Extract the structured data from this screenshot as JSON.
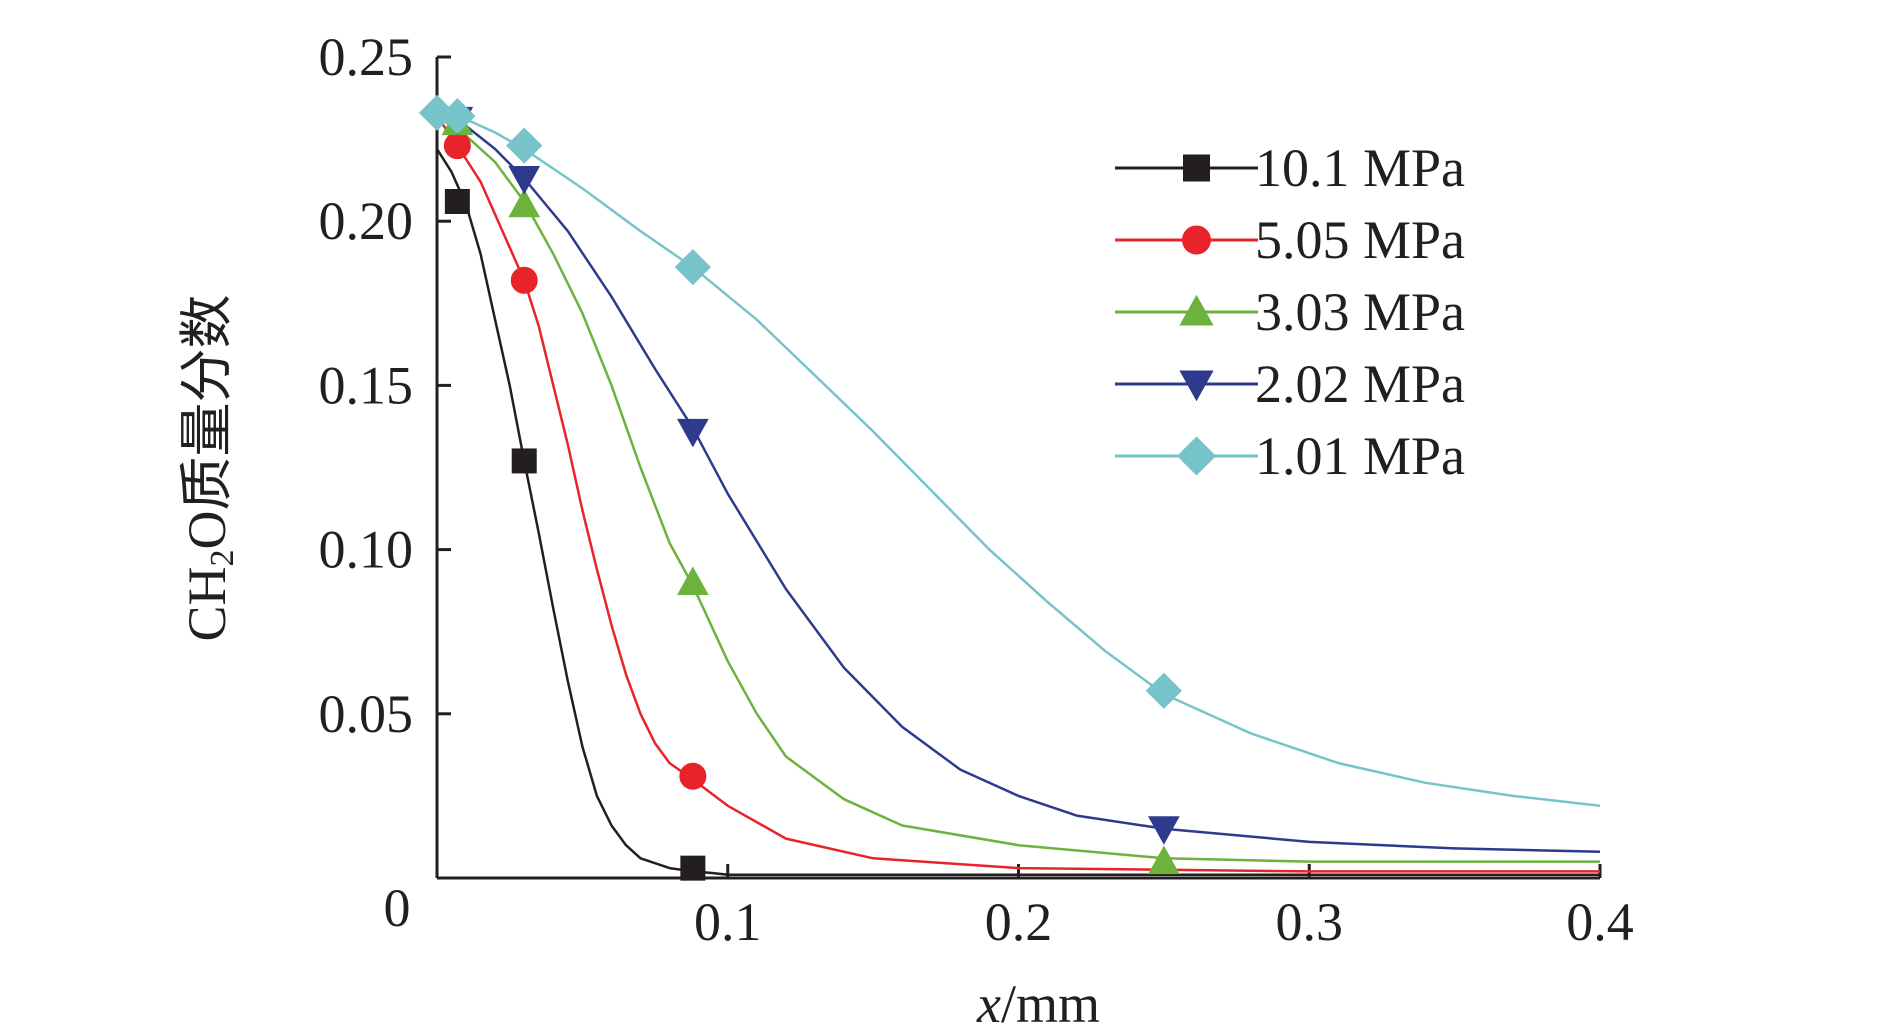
{
  "chart_data": {
    "type": "line",
    "title": "",
    "xlabel_italic": "x",
    "xlabel_unit": "/mm",
    "ylabel_prefix": "CH",
    "ylabel_subscript": "2",
    "ylabel_suffix": "O质量分数",
    "xlim": [
      0,
      0.4
    ],
    "ylim": [
      0,
      0.25
    ],
    "x_ticks": [
      0,
      0.1,
      0.2,
      0.3,
      0.4
    ],
    "x_tick_labels": [
      "0",
      "0.1",
      "0.2",
      "0.3",
      "0.4"
    ],
    "y_ticks": [
      0.05,
      0.1,
      0.15,
      0.2,
      0.25
    ],
    "y_tick_labels": [
      "0.05",
      "0.10",
      "0.15",
      "0.20",
      "0.25"
    ],
    "grid": false,
    "legend_position": "top-right",
    "series": [
      {
        "name": "10.1 MPa",
        "color": "#231f20",
        "marker": "square",
        "x": [
          0,
          0.005,
          0.01,
          0.015,
          0.02,
          0.025,
          0.03,
          0.035,
          0.04,
          0.045,
          0.05,
          0.055,
          0.06,
          0.065,
          0.07,
          0.08,
          0.088,
          0.095,
          0.1,
          0.15,
          0.2,
          0.3,
          0.4
        ],
        "y": [
          0.222,
          0.215,
          0.205,
          0.19,
          0.17,
          0.15,
          0.127,
          0.105,
          0.082,
          0.06,
          0.04,
          0.025,
          0.016,
          0.01,
          0.006,
          0.003,
          0.002,
          0.0015,
          0.001,
          0.001,
          0.001,
          0.001,
          0.001
        ],
        "marker_x": [
          0.007,
          0.03,
          0.088
        ],
        "marker_y": [
          0.206,
          0.127,
          0.003
        ]
      },
      {
        "name": "5.05 MPa",
        "color": "#e8242a",
        "marker": "circle",
        "x": [
          0,
          0.007,
          0.015,
          0.022,
          0.03,
          0.035,
          0.04,
          0.045,
          0.05,
          0.055,
          0.06,
          0.065,
          0.07,
          0.075,
          0.08,
          0.088,
          0.1,
          0.12,
          0.15,
          0.2,
          0.3,
          0.4
        ],
        "y": [
          0.232,
          0.223,
          0.212,
          0.198,
          0.182,
          0.168,
          0.15,
          0.132,
          0.112,
          0.094,
          0.077,
          0.062,
          0.05,
          0.041,
          0.035,
          0.03,
          0.022,
          0.012,
          0.006,
          0.003,
          0.002,
          0.002
        ],
        "marker_x": [
          0.007,
          0.03,
          0.088
        ],
        "marker_y": [
          0.223,
          0.182,
          0.031
        ]
      },
      {
        "name": "3.03 MPa",
        "color": "#6cb33e",
        "marker": "triangle-up",
        "x": [
          0,
          0.01,
          0.02,
          0.03,
          0.04,
          0.05,
          0.06,
          0.07,
          0.08,
          0.088,
          0.1,
          0.11,
          0.12,
          0.14,
          0.16,
          0.2,
          0.25,
          0.3,
          0.4
        ],
        "y": [
          0.232,
          0.226,
          0.218,
          0.206,
          0.19,
          0.172,
          0.15,
          0.125,
          0.102,
          0.089,
          0.066,
          0.05,
          0.037,
          0.024,
          0.016,
          0.01,
          0.006,
          0.005,
          0.005
        ],
        "marker_x": [
          0.007,
          0.03,
          0.088,
          0.25
        ],
        "marker_y": [
          0.23,
          0.205,
          0.09,
          0.005
        ]
      },
      {
        "name": "2.02 MPa",
        "color": "#2e3b8c",
        "marker": "triangle-down",
        "x": [
          0,
          0.01,
          0.02,
          0.03,
          0.045,
          0.06,
          0.075,
          0.088,
          0.1,
          0.12,
          0.14,
          0.16,
          0.18,
          0.2,
          0.22,
          0.25,
          0.3,
          0.35,
          0.4
        ],
        "y": [
          0.233,
          0.229,
          0.222,
          0.213,
          0.197,
          0.177,
          0.155,
          0.137,
          0.117,
          0.088,
          0.064,
          0.046,
          0.033,
          0.025,
          0.019,
          0.015,
          0.011,
          0.009,
          0.008
        ],
        "marker_x": [
          0.007,
          0.03,
          0.088,
          0.25
        ],
        "marker_y": [
          0.231,
          0.213,
          0.136,
          0.015
        ]
      },
      {
        "name": "1.01 MPa",
        "color": "#76c4c9",
        "marker": "diamond",
        "x": [
          0,
          0.01,
          0.02,
          0.03,
          0.05,
          0.07,
          0.088,
          0.11,
          0.13,
          0.15,
          0.17,
          0.19,
          0.21,
          0.23,
          0.25,
          0.28,
          0.31,
          0.34,
          0.37,
          0.4
        ],
        "y": [
          0.233,
          0.231,
          0.227,
          0.222,
          0.21,
          0.197,
          0.186,
          0.17,
          0.153,
          0.136,
          0.118,
          0.1,
          0.084,
          0.069,
          0.056,
          0.044,
          0.035,
          0.029,
          0.025,
          0.022
        ],
        "marker_x": [
          0,
          0.007,
          0.03,
          0.088,
          0.25
        ],
        "marker_y": [
          0.233,
          0.232,
          0.223,
          0.186,
          0.057
        ]
      }
    ]
  }
}
